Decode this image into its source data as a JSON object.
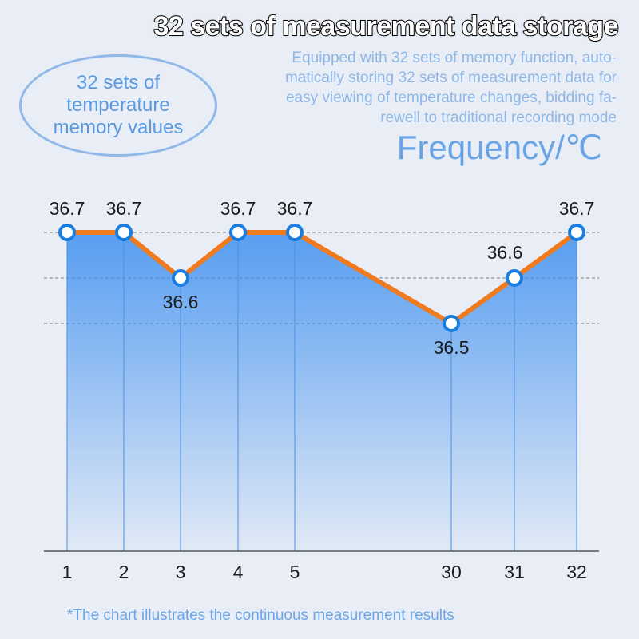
{
  "header": {
    "title": "32 sets of measurement data storage",
    "description": [
      "Equipped with 32 sets of memory function, auto-",
      "matically storing 32 sets of measurement data for",
      "easy viewing of temperature changes, bidding fa-",
      "rewell to traditional recording mode"
    ]
  },
  "badge": [
    "32 sets of",
    "temperature",
    "memory values"
  ],
  "footnote": "*The chart illustrates the continuous measurement results",
  "chart_data": {
    "type": "line",
    "y_label": "Frequency/℃",
    "categories": [
      "1",
      "2",
      "3",
      "4",
      "5",
      "30",
      "31",
      "32"
    ],
    "values": [
      36.7,
      36.7,
      36.6,
      36.7,
      36.7,
      36.5,
      36.6,
      36.7
    ],
    "ylim": [
      36.0,
      36.7
    ],
    "gridlines": [
      36.5,
      36.6,
      36.7
    ],
    "line_color": "#f07a1e",
    "marker_color": "#1a7de0",
    "area_color": "#3d8ff0"
  }
}
